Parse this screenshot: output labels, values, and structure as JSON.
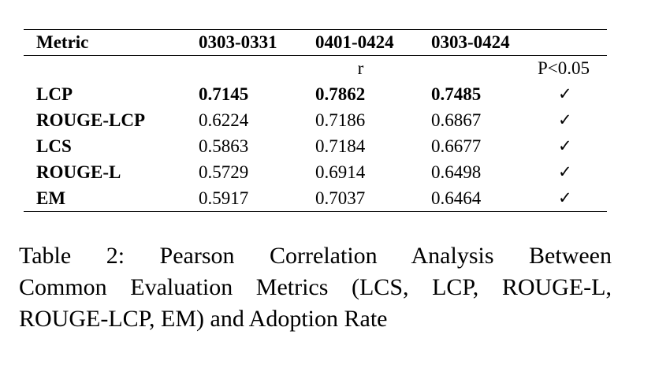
{
  "table": {
    "headers": [
      "Metric",
      "0303-0331",
      "0401-0424",
      "0303-0424",
      ""
    ],
    "subheader": {
      "r_label": "r",
      "p_label": "P<0.05"
    },
    "rows": [
      {
        "metric": "LCP",
        "v1": "0.7145",
        "v2": "0.7862",
        "v3": "0.7485",
        "sig": "✓",
        "bold": true
      },
      {
        "metric": "ROUGE-LCP",
        "v1": "0.6224",
        "v2": "0.7186",
        "v3": "0.6867",
        "sig": "✓",
        "bold": false
      },
      {
        "metric": "LCS",
        "v1": "0.5863",
        "v2": "0.7184",
        "v3": "0.6677",
        "sig": "✓",
        "bold": false
      },
      {
        "metric": "ROUGE-L",
        "v1": "0.5729",
        "v2": "0.6914",
        "v3": "0.6498",
        "sig": "✓",
        "bold": false
      },
      {
        "metric": "EM",
        "v1": "0.5917",
        "v2": "0.7037",
        "v3": "0.6464",
        "sig": "✓",
        "bold": false
      }
    ]
  },
  "caption": {
    "line1": "Table 2:  Pearson Correlation Analysis Between",
    "line2": "Common Evaluation Metrics (LCS, LCP, ROUGE-L,",
    "line3": "ROUGE-LCP, EM) and Adoption Rate"
  }
}
